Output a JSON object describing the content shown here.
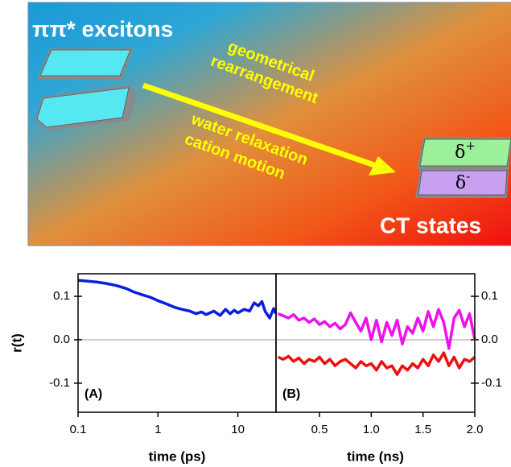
{
  "diagram": {
    "start_label": "ππ* excitons",
    "arrow_top": [
      "geometrical",
      "rearrangement"
    ],
    "arrow_bottom": [
      "water relaxation",
      "cation motion"
    ],
    "end_label": "CT states",
    "charge_plus": {
      "symbol": "δ",
      "sign": "+"
    },
    "charge_minus": {
      "symbol": "δ",
      "sign": "-"
    }
  },
  "chart_data": [
    {
      "type": "line",
      "panel_label": "(A)",
      "xlabel": "time (ps)",
      "ylabel": "r(t)",
      "xscale": "log",
      "ytick_side": "left",
      "xlim": [
        0.1,
        30
      ],
      "ylim": [
        -0.167,
        0.152
      ],
      "xticks": [
        0.1,
        1,
        10
      ],
      "yticks": [
        0.1,
        {
          "value": 0,
          "label": "0.0"
        },
        -0.1
      ],
      "zero_line_color": "#bbbbbb",
      "x": [
        0.1,
        0.13,
        0.17,
        0.22,
        0.3,
        0.4,
        0.5,
        0.65,
        0.8,
        1,
        1.3,
        1.6,
        2,
        2.5,
        3,
        3.5,
        4,
        5,
        6,
        7,
        8,
        9,
        10,
        12,
        14,
        16,
        18,
        20,
        22,
        25,
        28,
        30
      ],
      "series": [
        {
          "color": "#0a1ee0",
          "values": [
            0.137,
            0.135,
            0.133,
            0.13,
            0.125,
            0.118,
            0.11,
            0.103,
            0.098,
            0.09,
            0.082,
            0.075,
            0.07,
            0.066,
            0.06,
            0.064,
            0.058,
            0.066,
            0.056,
            0.07,
            0.06,
            0.068,
            0.062,
            0.07,
            0.066,
            0.085,
            0.078,
            0.088,
            0.065,
            0.05,
            0.072,
            0.06
          ]
        }
      ]
    },
    {
      "type": "line",
      "panel_label": "(B)",
      "xlabel": "time (ns)",
      "xscale": "linear",
      "ytick_side": "right",
      "xlim": [
        0.08,
        2.0
      ],
      "ylim": [
        -0.167,
        0.152
      ],
      "xticks": [
        0.5,
        {
          "value": 1,
          "label": "1.0"
        },
        1.5,
        {
          "value": 2,
          "label": "2.0"
        }
      ],
      "yticks": [
        0.1,
        {
          "value": 0,
          "label": "0.0"
        },
        -0.1
      ],
      "zero_line_color": "#bbbbbb",
      "x": [
        0.1,
        0.15,
        0.2,
        0.25,
        0.3,
        0.35,
        0.4,
        0.45,
        0.5,
        0.55,
        0.6,
        0.65,
        0.7,
        0.75,
        0.8,
        0.85,
        0.9,
        0.95,
        1.0,
        1.05,
        1.1,
        1.15,
        1.2,
        1.25,
        1.3,
        1.35,
        1.4,
        1.45,
        1.5,
        1.55,
        1.6,
        1.65,
        1.7,
        1.75,
        1.8,
        1.85,
        1.9,
        1.95,
        2.0
      ],
      "series": [
        {
          "color": "#ee10ee",
          "values": [
            0.06,
            0.055,
            0.05,
            0.058,
            0.045,
            0.05,
            0.04,
            0.048,
            0.035,
            0.042,
            0.03,
            0.038,
            0.025,
            0.035,
            0.062,
            0.04,
            0.02,
            0.05,
            0.0,
            0.045,
            -0.005,
            0.04,
            0.01,
            0.045,
            -0.01,
            0.03,
            0.015,
            0.05,
            0.02,
            0.065,
            0.03,
            0.07,
            0.04,
            -0.02,
            0.05,
            0.068,
            0.03,
            0.06,
            0.0
          ]
        },
        {
          "color": "#ee1010",
          "values": [
            -0.04,
            -0.045,
            -0.038,
            -0.05,
            -0.042,
            -0.055,
            -0.045,
            -0.05,
            -0.04,
            -0.055,
            -0.045,
            -0.06,
            -0.05,
            -0.045,
            -0.055,
            -0.065,
            -0.05,
            -0.06,
            -0.055,
            -0.07,
            -0.05,
            -0.065,
            -0.06,
            -0.08,
            -0.06,
            -0.07,
            -0.055,
            -0.065,
            -0.045,
            -0.06,
            -0.035,
            -0.05,
            -0.03,
            -0.06,
            -0.04,
            -0.065,
            -0.045,
            -0.05,
            -0.04
          ]
        }
      ]
    }
  ]
}
